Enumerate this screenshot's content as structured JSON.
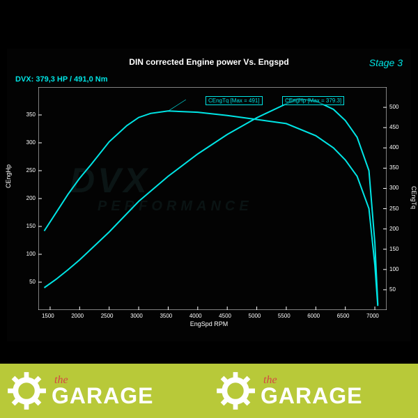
{
  "chart": {
    "title": "DIN corrected Engine power Vs. Engspd",
    "stage": "Stage 3",
    "dvx": "DVX:  379,3 HP / 491,0 Nm",
    "xlabel": "EngSpd RPM",
    "y1label": "CEngHp",
    "y2label": "CEngTq",
    "background": "#030303",
    "line_color": "#00e5e5",
    "grid_color": "#2a2a2a",
    "text_color": "#ffffff",
    "xlim": [
      1300,
      7200
    ],
    "y1lim": [
      0,
      400
    ],
    "y2lim": [
      0,
      550
    ],
    "y1ticks": [
      50,
      100,
      150,
      200,
      250,
      300,
      350
    ],
    "y2ticks": [
      50,
      100,
      150,
      200,
      250,
      300,
      350,
      400,
      450,
      500
    ],
    "xticks": [
      1500,
      2000,
      2500,
      3000,
      3500,
      4000,
      4500,
      5000,
      5500,
      6000,
      6500,
      7000
    ],
    "peak_tq_label": "CEngTq [Max = 491]",
    "peak_hp_label": "CEngHp [Max = 379.3]",
    "hp_series": {
      "rpm": [
        1400,
        1600,
        1800,
        2000,
        2200,
        2500,
        3000,
        3500,
        4000,
        4500,
        5000,
        5500,
        5700,
        6000,
        6300,
        6500,
        6700,
        6900,
        7000,
        7050
      ],
      "value": [
        40,
        55,
        72,
        90,
        110,
        140,
        195,
        240,
        280,
        315,
        345,
        370,
        379,
        375,
        360,
        340,
        310,
        250,
        120,
        10
      ]
    },
    "tq_series": {
      "rpm": [
        1400,
        1600,
        1800,
        2000,
        2200,
        2500,
        2800,
        3000,
        3200,
        3500,
        4000,
        4500,
        5000,
        5500,
        6000,
        6300,
        6500,
        6700,
        6900,
        7000,
        7050
      ],
      "value": [
        195,
        240,
        285,
        325,
        360,
        415,
        455,
        475,
        485,
        491,
        488,
        480,
        470,
        460,
        430,
        400,
        370,
        330,
        250,
        110,
        10
      ]
    },
    "watermark1": "DVX",
    "watermark2": "PERFORMANCE"
  },
  "footer": {
    "background": "#b8c939",
    "gear_color": "#ffffff",
    "the_color": "#d64545",
    "garage_color": "#ffffff",
    "the_text": "the",
    "garage_text": "GARAGE"
  }
}
